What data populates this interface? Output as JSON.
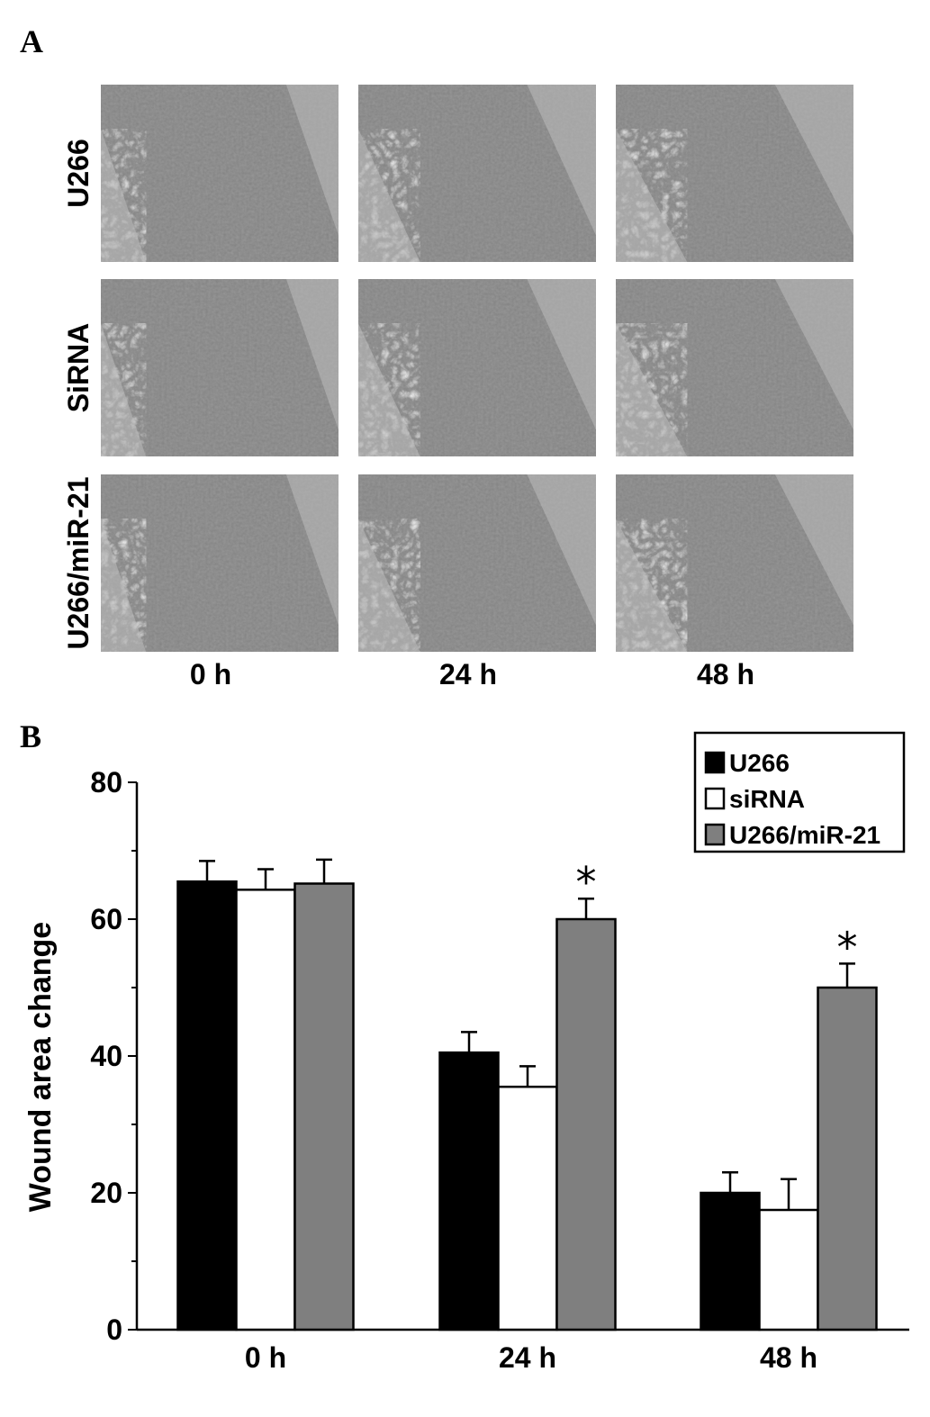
{
  "panel_a": {
    "letter": "A",
    "rows": [
      "U266",
      "SiRNA",
      "U266/miR-21"
    ],
    "columns": [
      "0 h",
      "24 h",
      "48 h"
    ]
  },
  "panel_b": {
    "letter": "B"
  },
  "colors": {
    "U266": "#000000",
    "siRNA": "#ffffff",
    "U266/miR-21": "#7f7f7f",
    "micrograph_bg": "#9a9a9a"
  },
  "chart_data": {
    "type": "bar",
    "categories": [
      "0 h",
      "24 h",
      "48 h"
    ],
    "series": [
      {
        "name": "U266",
        "values": [
          65.5,
          40.5,
          20.0
        ],
        "errors": [
          3.0,
          3.0,
          3.0
        ]
      },
      {
        "name": "siRNA",
        "values": [
          64.3,
          35.5,
          17.5
        ],
        "errors": [
          3.0,
          3.0,
          4.5
        ]
      },
      {
        "name": "U266/miR-21",
        "values": [
          65.2,
          60.0,
          50.0
        ],
        "errors": [
          3.5,
          3.0,
          3.5
        ]
      }
    ],
    "significance": [
      {
        "category": "24 h",
        "series": "U266/miR-21",
        "mark": "*"
      },
      {
        "category": "48 h",
        "series": "U266/miR-21",
        "mark": "*"
      }
    ],
    "xlabel": "",
    "ylabel": "Wound area change",
    "ylim": [
      0,
      80
    ],
    "yticks": [
      0,
      20,
      40,
      60,
      80
    ],
    "legend_position": "top-right",
    "grid": false
  }
}
